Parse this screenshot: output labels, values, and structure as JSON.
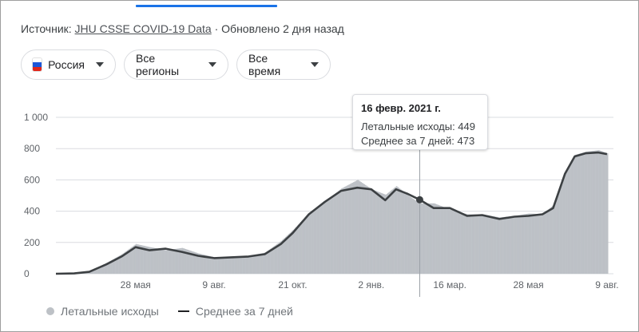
{
  "source": {
    "prefix": "Источник:",
    "link": "JHU CSSE COVID-19 Data",
    "updated": "· Обновлено 2 дня назад"
  },
  "filters": [
    {
      "label": "Россия",
      "icon": "russia-flag-icon"
    },
    {
      "label": "Все регионы"
    },
    {
      "label": "Все время"
    }
  ],
  "colors": {
    "accent": "#1a73e8",
    "bars": "#bdc1c6",
    "average_line": "#3c4043",
    "grid": "#dadce0"
  },
  "tooltip": {
    "date": "16 февр. 2021 г.",
    "deaths_label": "Летальные исходы: 449",
    "avg_label": "Среднее за 7 дней: 473"
  },
  "legend": {
    "deaths": "Летальные исходы",
    "average": "Среднее за 7 дней"
  },
  "chart_data": {
    "type": "area",
    "title": "",
    "xlabel": "",
    "ylabel": "",
    "ylim": [
      0,
      1000
    ],
    "yticks": [
      0,
      200,
      400,
      600,
      800,
      1000
    ],
    "ytick_labels": [
      "0",
      "200",
      "400",
      "600",
      "800",
      "1 000"
    ],
    "xtick_labels": [
      "28 мая",
      "9 авг.",
      "21 окт.",
      "2 янв.",
      "16 мар.",
      "28 мая",
      "9 авг."
    ],
    "grid": true,
    "legend_position": "bottom-left",
    "hover": {
      "date": "16 февр. 2021 г.",
      "deaths": 449,
      "average": 473
    },
    "series": [
      {
        "name": "Летальные исходы",
        "style": "bars",
        "x": [
          "2020-03-15",
          "2020-04-01",
          "2020-04-15",
          "2020-05-01",
          "2020-05-15",
          "2020-05-28",
          "2020-06-10",
          "2020-06-25",
          "2020-07-10",
          "2020-07-25",
          "2020-08-09",
          "2020-08-25",
          "2020-09-10",
          "2020-09-25",
          "2020-10-10",
          "2020-10-21",
          "2020-11-05",
          "2020-11-20",
          "2020-12-05",
          "2020-12-20",
          "2021-01-02",
          "2021-01-15",
          "2021-01-25",
          "2021-02-05",
          "2021-02-16",
          "2021-03-01",
          "2021-03-16",
          "2021-04-01",
          "2021-04-15",
          "2021-05-01",
          "2021-05-15",
          "2021-05-28",
          "2021-06-10",
          "2021-06-20",
          "2021-07-01",
          "2021-07-10",
          "2021-07-20",
          "2021-08-01",
          "2021-08-09"
        ],
        "values": [
          0,
          3,
          15,
          70,
          125,
          190,
          170,
          150,
          165,
          130,
          105,
          110,
          115,
          135,
          210,
          280,
          390,
          460,
          545,
          600,
          540,
          505,
          560,
          500,
          449,
          450,
          410,
          380,
          380,
          360,
          370,
          385,
          380,
          440,
          640,
          760,
          780,
          790,
          770
        ]
      },
      {
        "name": "Среднее за 7 дней",
        "style": "line",
        "x": [
          "2020-03-15",
          "2020-04-01",
          "2020-04-15",
          "2020-05-01",
          "2020-05-15",
          "2020-05-28",
          "2020-06-10",
          "2020-06-25",
          "2020-07-10",
          "2020-07-25",
          "2020-08-09",
          "2020-08-25",
          "2020-09-10",
          "2020-09-25",
          "2020-10-10",
          "2020-10-21",
          "2020-11-05",
          "2020-11-20",
          "2020-12-05",
          "2020-12-20",
          "2021-01-02",
          "2021-01-15",
          "2021-01-25",
          "2021-02-05",
          "2021-02-16",
          "2021-03-01",
          "2021-03-16",
          "2021-04-01",
          "2021-04-15",
          "2021-05-01",
          "2021-05-15",
          "2021-05-28",
          "2021-06-10",
          "2021-06-20",
          "2021-07-01",
          "2021-07-10",
          "2021-07-20",
          "2021-08-01",
          "2021-08-09"
        ],
        "values": [
          0,
          2,
          12,
          60,
          110,
          170,
          150,
          160,
          140,
          115,
          100,
          105,
          110,
          125,
          190,
          260,
          380,
          460,
          530,
          550,
          540,
          470,
          540,
          510,
          473,
          420,
          420,
          370,
          375,
          350,
          365,
          370,
          380,
          420,
          640,
          750,
          770,
          775,
          765
        ]
      }
    ]
  }
}
